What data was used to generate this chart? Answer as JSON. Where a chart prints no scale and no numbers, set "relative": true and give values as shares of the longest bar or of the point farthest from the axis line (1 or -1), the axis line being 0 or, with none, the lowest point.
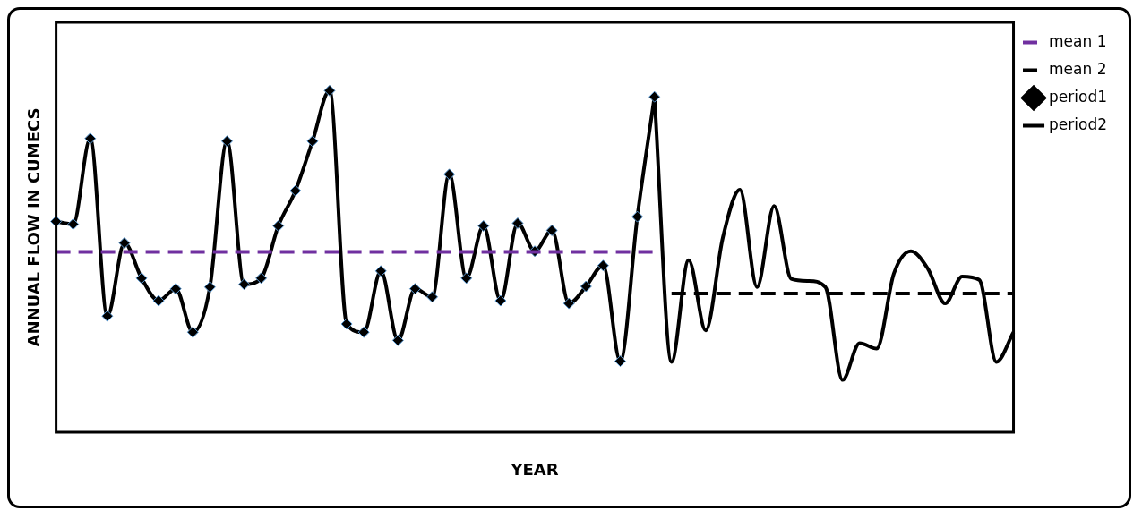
{
  "chart_data": {
    "type": "line",
    "relative": true,
    "xlabel": "YEAR",
    "ylabel": "ANNUAL FLOW IN CUMECS",
    "legend": "top right",
    "grid": false,
    "categories": [
      null,
      null,
      null,
      null,
      null,
      null,
      null,
      null,
      null,
      null,
      null,
      null,
      null,
      null,
      null,
      null,
      null,
      null,
      null,
      null,
      null,
      null,
      null,
      null,
      null,
      null,
      null,
      null,
      null,
      null,
      null,
      null,
      null,
      null,
      null,
      null,
      null,
      null,
      null,
      null,
      null,
      null,
      null,
      null,
      null,
      null,
      null,
      null,
      null,
      null,
      null,
      null,
      null,
      null,
      null,
      null,
      null
    ],
    "series": [
      {
        "name": "mean 1",
        "color": "#7030a0",
        "line_style": "dashed",
        "marker": "none",
        "values": [
          0.528,
          0.528,
          0.528,
          0.528,
          0.528,
          0.528,
          0.528,
          0.528,
          0.528,
          0.528,
          0.528,
          0.528,
          0.528,
          0.528,
          0.528,
          0.528,
          0.528,
          0.528,
          0.528,
          0.528,
          0.528,
          0.528,
          0.528,
          0.528,
          0.528,
          0.528,
          0.528,
          0.528,
          0.528,
          0.528,
          0.528,
          0.528,
          0.528,
          0.528,
          0.528,
          0.528,
          null,
          null,
          null,
          null,
          null,
          null,
          null,
          null,
          null,
          null,
          null,
          null,
          null,
          null,
          null,
          null,
          null,
          null,
          null,
          null,
          null
        ]
      },
      {
        "name": "mean 2",
        "color": "#000000",
        "line_style": "dashed",
        "marker": "none",
        "values": [
          null,
          null,
          null,
          null,
          null,
          null,
          null,
          null,
          null,
          null,
          null,
          null,
          null,
          null,
          null,
          null,
          null,
          null,
          null,
          null,
          null,
          null,
          null,
          null,
          null,
          null,
          null,
          null,
          null,
          null,
          null,
          null,
          null,
          null,
          null,
          null,
          0.406,
          0.406,
          0.406,
          0.406,
          0.406,
          0.406,
          0.406,
          0.406,
          0.406,
          0.406,
          0.406,
          0.406,
          0.406,
          0.406,
          0.406,
          0.406,
          0.406,
          0.406,
          0.406,
          0.406,
          0.406
        ]
      },
      {
        "name": "period1",
        "color": "#000000",
        "line_style": "solid",
        "marker": "diamond",
        "values": [
          0.617,
          0.609,
          0.86,
          0.34,
          0.554,
          0.451,
          0.385,
          0.42,
          0.293,
          0.425,
          0.852,
          0.433,
          0.451,
          0.604,
          0.707,
          0.852,
          1,
          0.317,
          0.293,
          0.472,
          0.269,
          0.42,
          0.396,
          0.755,
          0.451,
          0.604,
          0.385,
          0.612,
          0.53,
          0.591,
          0.377,
          0.427,
          0.488,
          0.208,
          0.631,
          0.982,
          null,
          null,
          null,
          null,
          null,
          null,
          null,
          null,
          null,
          null,
          null,
          null,
          null,
          null,
          null,
          null,
          null,
          null,
          null,
          null,
          null
        ]
      },
      {
        "name": "period2",
        "color": "#000000",
        "line_style": "solid",
        "marker": "none",
        "values": [
          null,
          null,
          null,
          null,
          null,
          null,
          null,
          null,
          null,
          null,
          null,
          null,
          null,
          null,
          null,
          null,
          null,
          null,
          null,
          null,
          null,
          null,
          null,
          null,
          null,
          null,
          null,
          null,
          null,
          null,
          null,
          null,
          null,
          null,
          null,
          0.982,
          0.206,
          0.504,
          0.298,
          0.57,
          0.71,
          0.425,
          0.662,
          0.449,
          0.443,
          0.425,
          0.153,
          0.261,
          0.245,
          0.464,
          0.53,
          0.478,
          0.377,
          0.456,
          0.446,
          0.206,
          0.293
        ]
      }
    ]
  }
}
